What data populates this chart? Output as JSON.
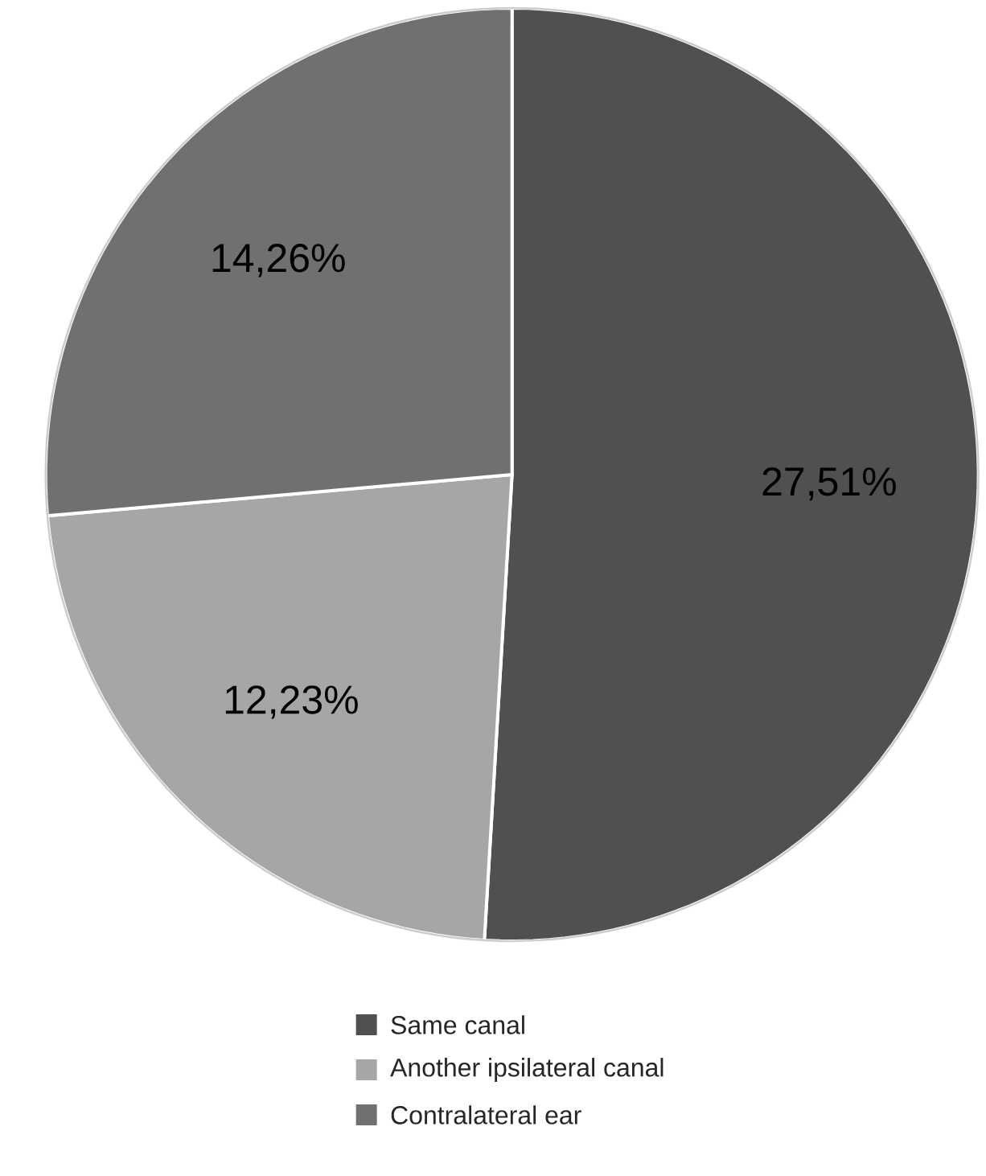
{
  "chart_data": {
    "type": "pie",
    "categories": [
      "Same canal",
      "Another ipsilateral canal",
      "Contralateral ear"
    ],
    "values": [
      27.51,
      12.23,
      14.26
    ],
    "value_labels": [
      "27,51%",
      "12,23%",
      "14,26%"
    ],
    "colors": [
      "#505050",
      "#a6a6a6",
      "#707070"
    ],
    "legend": "bottom"
  }
}
